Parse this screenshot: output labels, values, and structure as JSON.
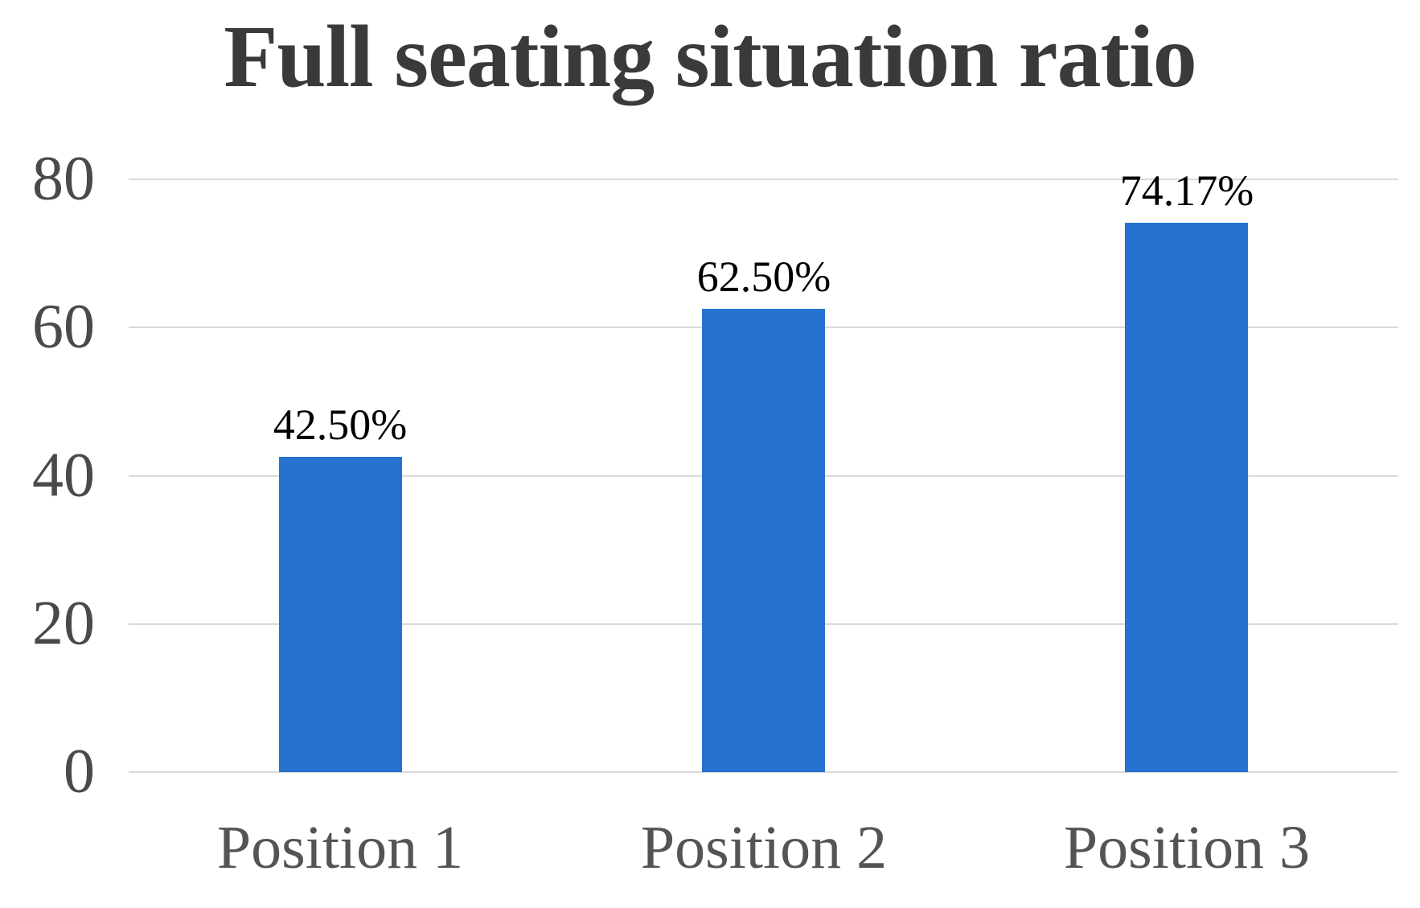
{
  "chart_data": {
    "type": "bar",
    "title": "Full seating situation ratio",
    "categories": [
      "Position 1",
      "Position 2",
      "Position 3"
    ],
    "values": [
      42.5,
      62.5,
      74.17
    ],
    "value_labels": [
      "42.50%",
      "62.50%",
      "74.17%"
    ],
    "xlabel": "",
    "ylabel": "",
    "ylim": [
      0,
      80
    ],
    "yticks": [
      0,
      20,
      40,
      60,
      80
    ],
    "grid": true,
    "legend": false,
    "colors": {
      "bar_fill": "#2573ce",
      "title_text": "#3a3a3a",
      "y_tick_text": "#4a4a4a",
      "category_text": "#545454",
      "value_label_text": "#000000",
      "gridline": "#d9d9d9",
      "background": "#ffffff"
    }
  }
}
